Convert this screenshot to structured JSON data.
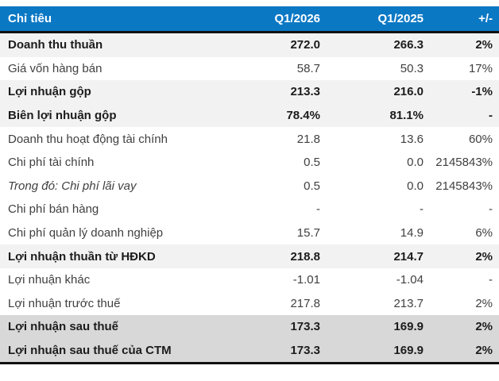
{
  "colors": {
    "header_bg": "#0b78c4",
    "header_text": "#ffffff",
    "row_light_bg": "#f2f2f2",
    "row_dark_bg": "#d8d8d8",
    "border": "#111111",
    "text_regular": "#404040",
    "text_bold": "#1c1c1c"
  },
  "chart_data": {
    "type": "table",
    "title": "",
    "columns": [
      "Chỉ tiêu",
      "Q1/2026",
      "Q1/2025",
      "+/-"
    ],
    "rows": [
      {
        "label": "Doanh thu thuần",
        "q1_2026": "272.0",
        "q1_2025": "266.3",
        "delta": "2%",
        "bold": true,
        "italic": false,
        "bg": "light"
      },
      {
        "label": "Giá vốn hàng bán",
        "q1_2026": "58.7",
        "q1_2025": "50.3",
        "delta": "17%",
        "bold": false,
        "italic": false,
        "bg": "none"
      },
      {
        "label": "Lợi nhuận gộp",
        "q1_2026": "213.3",
        "q1_2025": "216.0",
        "delta": "-1%",
        "bold": true,
        "italic": false,
        "bg": "light"
      },
      {
        "label": "Biên lợi nhuận gộp",
        "q1_2026": "78.4%",
        "q1_2025": "81.1%",
        "delta": "-",
        "bold": true,
        "italic": false,
        "bg": "light"
      },
      {
        "label": "Doanh thu hoạt động tài chính",
        "q1_2026": "21.8",
        "q1_2025": "13.6",
        "delta": "60%",
        "bold": false,
        "italic": false,
        "bg": "none"
      },
      {
        "label": "Chi phí tài chính",
        "q1_2026": "0.5",
        "q1_2025": "0.0",
        "delta": "2145843%",
        "bold": false,
        "italic": false,
        "bg": "none"
      },
      {
        "label": "Trong đó: Chi phí lãi vay",
        "q1_2026": "0.5",
        "q1_2025": "0.0",
        "delta": "2145843%",
        "bold": false,
        "italic": true,
        "bg": "none"
      },
      {
        "label": "Chi phí bán hàng",
        "q1_2026": "-",
        "q1_2025": "-",
        "delta": "-",
        "bold": false,
        "italic": false,
        "bg": "none"
      },
      {
        "label": "Chi phí quản lý doanh nghiệp",
        "q1_2026": "15.7",
        "q1_2025": "14.9",
        "delta": "6%",
        "bold": false,
        "italic": false,
        "bg": "none"
      },
      {
        "label": "Lợi nhuận thuần từ HĐKD",
        "q1_2026": "218.8",
        "q1_2025": "214.7",
        "delta": "2%",
        "bold": true,
        "italic": false,
        "bg": "light"
      },
      {
        "label": "Lợi nhuận khác",
        "q1_2026": "-1.01",
        "q1_2025": "-1.04",
        "delta": "-",
        "bold": false,
        "italic": false,
        "bg": "none"
      },
      {
        "label": "Lợi nhuận trước thuế",
        "q1_2026": "217.8",
        "q1_2025": "213.7",
        "delta": "2%",
        "bold": false,
        "italic": false,
        "bg": "none"
      },
      {
        "label": "Lợi nhuận sau thuế",
        "q1_2026": "173.3",
        "q1_2025": "169.9",
        "delta": "2%",
        "bold": true,
        "italic": false,
        "bg": "dark"
      },
      {
        "label": "Lợi nhuận sau thuế của CTM",
        "q1_2026": "173.3",
        "q1_2025": "169.9",
        "delta": "2%",
        "bold": true,
        "italic": false,
        "bg": "dark"
      }
    ]
  }
}
